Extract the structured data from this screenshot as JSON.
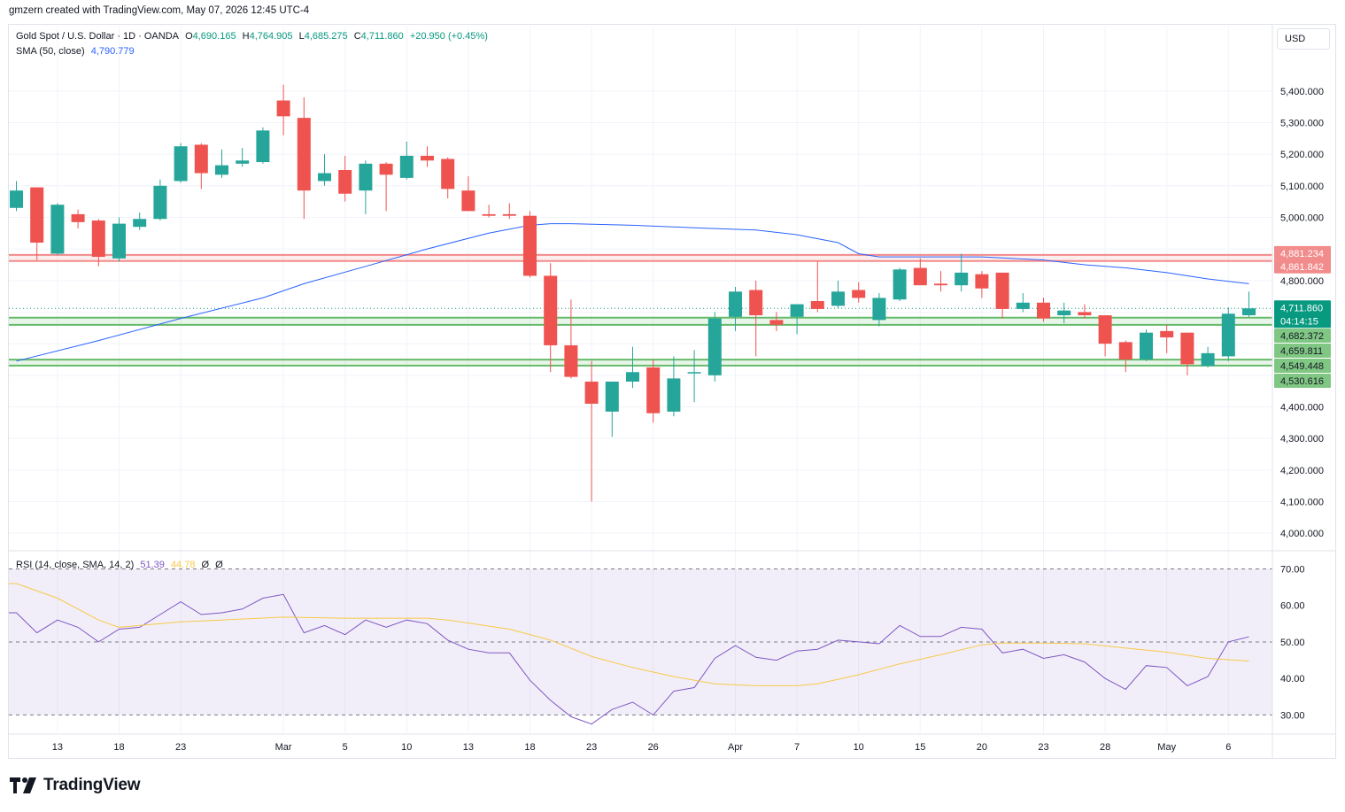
{
  "caption": "gmzern created with TradingView.com, May 07, 2026 12:45 UTC-4",
  "currency_button": "USD",
  "brand": "TradingView",
  "legend": {
    "symbol": "Gold Spot / U.S. Dollar · 1D · OANDA",
    "o_label": "O",
    "o_value": "4,690.165",
    "h_label": "H",
    "h_value": "4,764.905",
    "l_label": "L",
    "l_value": "4,685.275",
    "c_label": "C",
    "c_value": "4,711.860",
    "change": "+20.950 (+0.45%)",
    "sma_label": "SMA (50, close)",
    "sma_value": "4,790.779",
    "rsi_label": "RSI (14, close, SMA, 14, 2)",
    "rsi_value": "51.39",
    "rsi_sma_value": "44.78",
    "rsi_extra1": "Ø",
    "rsi_extra2": "Ø"
  },
  "colors": {
    "up": "#26a69a",
    "down": "#ef5350",
    "sma": "#2962ff",
    "rsi": "#7e57c2",
    "rsi_sma": "#f7c948",
    "resistance": "#f28b8b",
    "support": "#66bb6a"
  },
  "chart_data": {
    "type": "candlestick",
    "price_axis": {
      "ylim": [
        3950,
        5520
      ],
      "ticks": [
        "5,400.000",
        "5,300.000",
        "5,200.000",
        "5,100.000",
        "5,000.000",
        "4,800.000",
        "4,400.000",
        "4,300.000",
        "4,200.000",
        "4,100.000",
        "4,000.000"
      ],
      "tick_values": [
        5400,
        5300,
        5200,
        5100,
        5000,
        4800,
        4400,
        4300,
        4200,
        4100,
        4000
      ]
    },
    "x_labels": [
      {
        "label": "13",
        "index": 2
      },
      {
        "label": "18",
        "index": 5
      },
      {
        "label": "23",
        "index": 8
      },
      {
        "label": "Mar",
        "index": 13
      },
      {
        "label": "5",
        "index": 16
      },
      {
        "label": "10",
        "index": 19
      },
      {
        "label": "13",
        "index": 22
      },
      {
        "label": "18",
        "index": 25
      },
      {
        "label": "23",
        "index": 28
      },
      {
        "label": "26",
        "index": 31
      },
      {
        "label": "Apr",
        "index": 35
      },
      {
        "label": "7",
        "index": 38
      },
      {
        "label": "10",
        "index": 41
      },
      {
        "label": "15",
        "index": 44
      },
      {
        "label": "20",
        "index": 47
      },
      {
        "label": "23",
        "index": 50
      },
      {
        "label": "28",
        "index": 53
      },
      {
        "label": "May",
        "index": 56
      },
      {
        "label": "6",
        "index": 59
      }
    ],
    "candles": [
      {
        "o": 5030,
        "h": 5115,
        "l": 5020,
        "c": 5085
      },
      {
        "o": 5095,
        "h": 5095,
        "l": 4865,
        "c": 4920
      },
      {
        "o": 4885,
        "h": 5045,
        "l": 4880,
        "c": 5040
      },
      {
        "o": 5010,
        "h": 5025,
        "l": 4965,
        "c": 4985
      },
      {
        "o": 4990,
        "h": 4995,
        "l": 4845,
        "c": 4875
      },
      {
        "o": 4870,
        "h": 5000,
        "l": 4860,
        "c": 4980
      },
      {
        "o": 4970,
        "h": 5015,
        "l": 4960,
        "c": 4995
      },
      {
        "o": 4995,
        "h": 5120,
        "l": 4990,
        "c": 5100
      },
      {
        "o": 5115,
        "h": 5235,
        "l": 5110,
        "c": 5225
      },
      {
        "o": 5230,
        "h": 5235,
        "l": 5090,
        "c": 5140
      },
      {
        "o": 5135,
        "h": 5215,
        "l": 5125,
        "c": 5165
      },
      {
        "o": 5170,
        "h": 5220,
        "l": 5160,
        "c": 5180
      },
      {
        "o": 5175,
        "h": 5285,
        "l": 5170,
        "c": 5275
      },
      {
        "o": 5370,
        "h": 5420,
        "l": 5260,
        "c": 5320
      },
      {
        "o": 5315,
        "h": 5380,
        "l": 4995,
        "c": 5085
      },
      {
        "o": 5115,
        "h": 5200,
        "l": 5100,
        "c": 5140
      },
      {
        "o": 5150,
        "h": 5195,
        "l": 5050,
        "c": 5075
      },
      {
        "o": 5085,
        "h": 5180,
        "l": 5010,
        "c": 5170
      },
      {
        "o": 5170,
        "h": 5175,
        "l": 5020,
        "c": 5135
      },
      {
        "o": 5125,
        "h": 5240,
        "l": 5120,
        "c": 5195
      },
      {
        "o": 5195,
        "h": 5225,
        "l": 5160,
        "c": 5180
      },
      {
        "o": 5185,
        "h": 5190,
        "l": 5060,
        "c": 5090
      },
      {
        "o": 5085,
        "h": 5130,
        "l": 5020,
        "c": 5020
      },
      {
        "o": 5010,
        "h": 5040,
        "l": 5000,
        "c": 5005
      },
      {
        "o": 5010,
        "h": 5045,
        "l": 4995,
        "c": 5005
      },
      {
        "o": 5005,
        "h": 5020,
        "l": 4810,
        "c": 4815
      },
      {
        "o": 4815,
        "h": 4855,
        "l": 4510,
        "c": 4595
      },
      {
        "o": 4595,
        "h": 4740,
        "l": 4490,
        "c": 4495
      },
      {
        "o": 4480,
        "h": 4545,
        "l": 4100,
        "c": 4410
      },
      {
        "o": 4385,
        "h": 4480,
        "l": 4305,
        "c": 4480
      },
      {
        "o": 4480,
        "h": 4590,
        "l": 4460,
        "c": 4510
      },
      {
        "o": 4525,
        "h": 4550,
        "l": 4350,
        "c": 4380
      },
      {
        "o": 4385,
        "h": 4560,
        "l": 4370,
        "c": 4490
      },
      {
        "o": 4510,
        "h": 4580,
        "l": 4415,
        "c": 4510
      },
      {
        "o": 4500,
        "h": 4700,
        "l": 4480,
        "c": 4680
      },
      {
        "o": 4685,
        "h": 4780,
        "l": 4640,
        "c": 4765
      },
      {
        "o": 4770,
        "h": 4800,
        "l": 4560,
        "c": 4690
      },
      {
        "o": 4675,
        "h": 4700,
        "l": 4640,
        "c": 4660
      },
      {
        "o": 4685,
        "h": 4725,
        "l": 4630,
        "c": 4725
      },
      {
        "o": 4735,
        "h": 4860,
        "l": 4700,
        "c": 4710
      },
      {
        "o": 4720,
        "h": 4800,
        "l": 4710,
        "c": 4765
      },
      {
        "o": 4770,
        "h": 4795,
        "l": 4730,
        "c": 4745
      },
      {
        "o": 4675,
        "h": 4760,
        "l": 4655,
        "c": 4745
      },
      {
        "o": 4740,
        "h": 4840,
        "l": 4735,
        "c": 4835
      },
      {
        "o": 4840,
        "h": 4870,
        "l": 4790,
        "c": 4785
      },
      {
        "o": 4790,
        "h": 4830,
        "l": 4765,
        "c": 4785
      },
      {
        "o": 4785,
        "h": 4885,
        "l": 4765,
        "c": 4825
      },
      {
        "o": 4820,
        "h": 4830,
        "l": 4745,
        "c": 4775
      },
      {
        "o": 4825,
        "h": 4825,
        "l": 4680,
        "c": 4710
      },
      {
        "o": 4710,
        "h": 4760,
        "l": 4700,
        "c": 4730
      },
      {
        "o": 4730,
        "h": 4745,
        "l": 4670,
        "c": 4680
      },
      {
        "o": 4690,
        "h": 4730,
        "l": 4665,
        "c": 4705
      },
      {
        "o": 4700,
        "h": 4725,
        "l": 4680,
        "c": 4690
      },
      {
        "o": 4690,
        "h": 4690,
        "l": 4560,
        "c": 4600
      },
      {
        "o": 4605,
        "h": 4610,
        "l": 4510,
        "c": 4550
      },
      {
        "o": 4550,
        "h": 4645,
        "l": 4545,
        "c": 4635
      },
      {
        "o": 4640,
        "h": 4660,
        "l": 4570,
        "c": 4620
      },
      {
        "o": 4635,
        "h": 4635,
        "l": 4500,
        "c": 4535
      },
      {
        "o": 4530,
        "h": 4590,
        "l": 4525,
        "c": 4570
      },
      {
        "o": 4560,
        "h": 4715,
        "l": 4545,
        "c": 4695
      },
      {
        "o": 4690,
        "h": 4765,
        "l": 4685,
        "c": 4712
      }
    ],
    "sma": [
      [
        0,
        4545
      ],
      [
        4,
        4610
      ],
      [
        8,
        4680
      ],
      [
        12,
        4745
      ],
      [
        14,
        4790
      ],
      [
        17,
        4845
      ],
      [
        20,
        4900
      ],
      [
        23,
        4950
      ],
      [
        25,
        4975
      ],
      [
        26,
        4980
      ],
      [
        27,
        4980
      ],
      [
        30,
        4975
      ],
      [
        33,
        4967
      ],
      [
        36,
        4960
      ],
      [
        38,
        4945
      ],
      [
        40,
        4920
      ],
      [
        41,
        4885
      ],
      [
        42,
        4875
      ],
      [
        44,
        4875
      ],
      [
        47,
        4875
      ],
      [
        50,
        4865
      ],
      [
        52,
        4850
      ],
      [
        54,
        4840
      ],
      [
        56,
        4825
      ],
      [
        58,
        4805
      ],
      [
        60,
        4790
      ]
    ],
    "hlines": [
      {
        "label": "4,881.234",
        "value": 4881.234,
        "type": "resistance"
      },
      {
        "label": "4,861.842",
        "value": 4861.842,
        "type": "resistance"
      },
      {
        "label": "4,682.372",
        "value": 4682.372,
        "type": "support"
      },
      {
        "label": "4,659.811",
        "value": 4659.811,
        "type": "support"
      },
      {
        "label": "4,549.448",
        "value": 4549.448,
        "type": "support"
      },
      {
        "label": "4,530.616",
        "value": 4530.616,
        "type": "support"
      }
    ],
    "last_price": {
      "label": "4,711.860",
      "value": 4711.86,
      "countdown": "04:14:15"
    },
    "rsi": {
      "ylim": [
        25,
        74
      ],
      "ticks": [
        "70.00",
        "60.00",
        "50.00",
        "40.00",
        "30.00"
      ],
      "tick_values": [
        70,
        60,
        50,
        40,
        30
      ],
      "upper_band": 70,
      "middle_line": 50,
      "lower_band": 30,
      "values": [
        58,
        52.5,
        56,
        54,
        50,
        53.5,
        54,
        57.5,
        61,
        57.5,
        58,
        59,
        62,
        63,
        52.5,
        54.5,
        52,
        56,
        54,
        56,
        55,
        50.5,
        48,
        47,
        47,
        39.5,
        34,
        29.5,
        27.5,
        31.5,
        33.5,
        30,
        36.5,
        37.5,
        45.5,
        49,
        45.8,
        45,
        47.5,
        48,
        50.5,
        50,
        49.5,
        54.5,
        51.5,
        51.5,
        54,
        53.5,
        47,
        48,
        45.5,
        46.5,
        44.5,
        40,
        37,
        43.5,
        43,
        38,
        40.5,
        50,
        51.39
      ],
      "sma_values": [
        [
          0,
          66
        ],
        [
          2,
          62
        ],
        [
          4,
          56
        ],
        [
          5,
          54
        ],
        [
          8,
          55.5
        ],
        [
          10,
          56
        ],
        [
          13,
          56.8
        ],
        [
          16,
          56.5
        ],
        [
          20,
          56.5
        ],
        [
          21,
          56
        ],
        [
          24,
          53.5
        ],
        [
          26,
          50.5
        ],
        [
          28,
          46
        ],
        [
          30,
          43
        ],
        [
          32,
          40.5
        ],
        [
          34,
          38.5
        ],
        [
          36,
          38
        ],
        [
          38,
          38
        ],
        [
          39,
          38.5
        ],
        [
          41,
          41
        ],
        [
          43,
          44
        ],
        [
          45,
          46.5
        ],
        [
          47,
          49.2
        ],
        [
          48,
          49.7
        ],
        [
          50,
          49.7
        ],
        [
          52,
          49.5
        ],
        [
          54,
          48.3
        ],
        [
          56,
          47.2
        ],
        [
          58,
          45.5
        ],
        [
          60,
          44.78
        ]
      ]
    }
  }
}
